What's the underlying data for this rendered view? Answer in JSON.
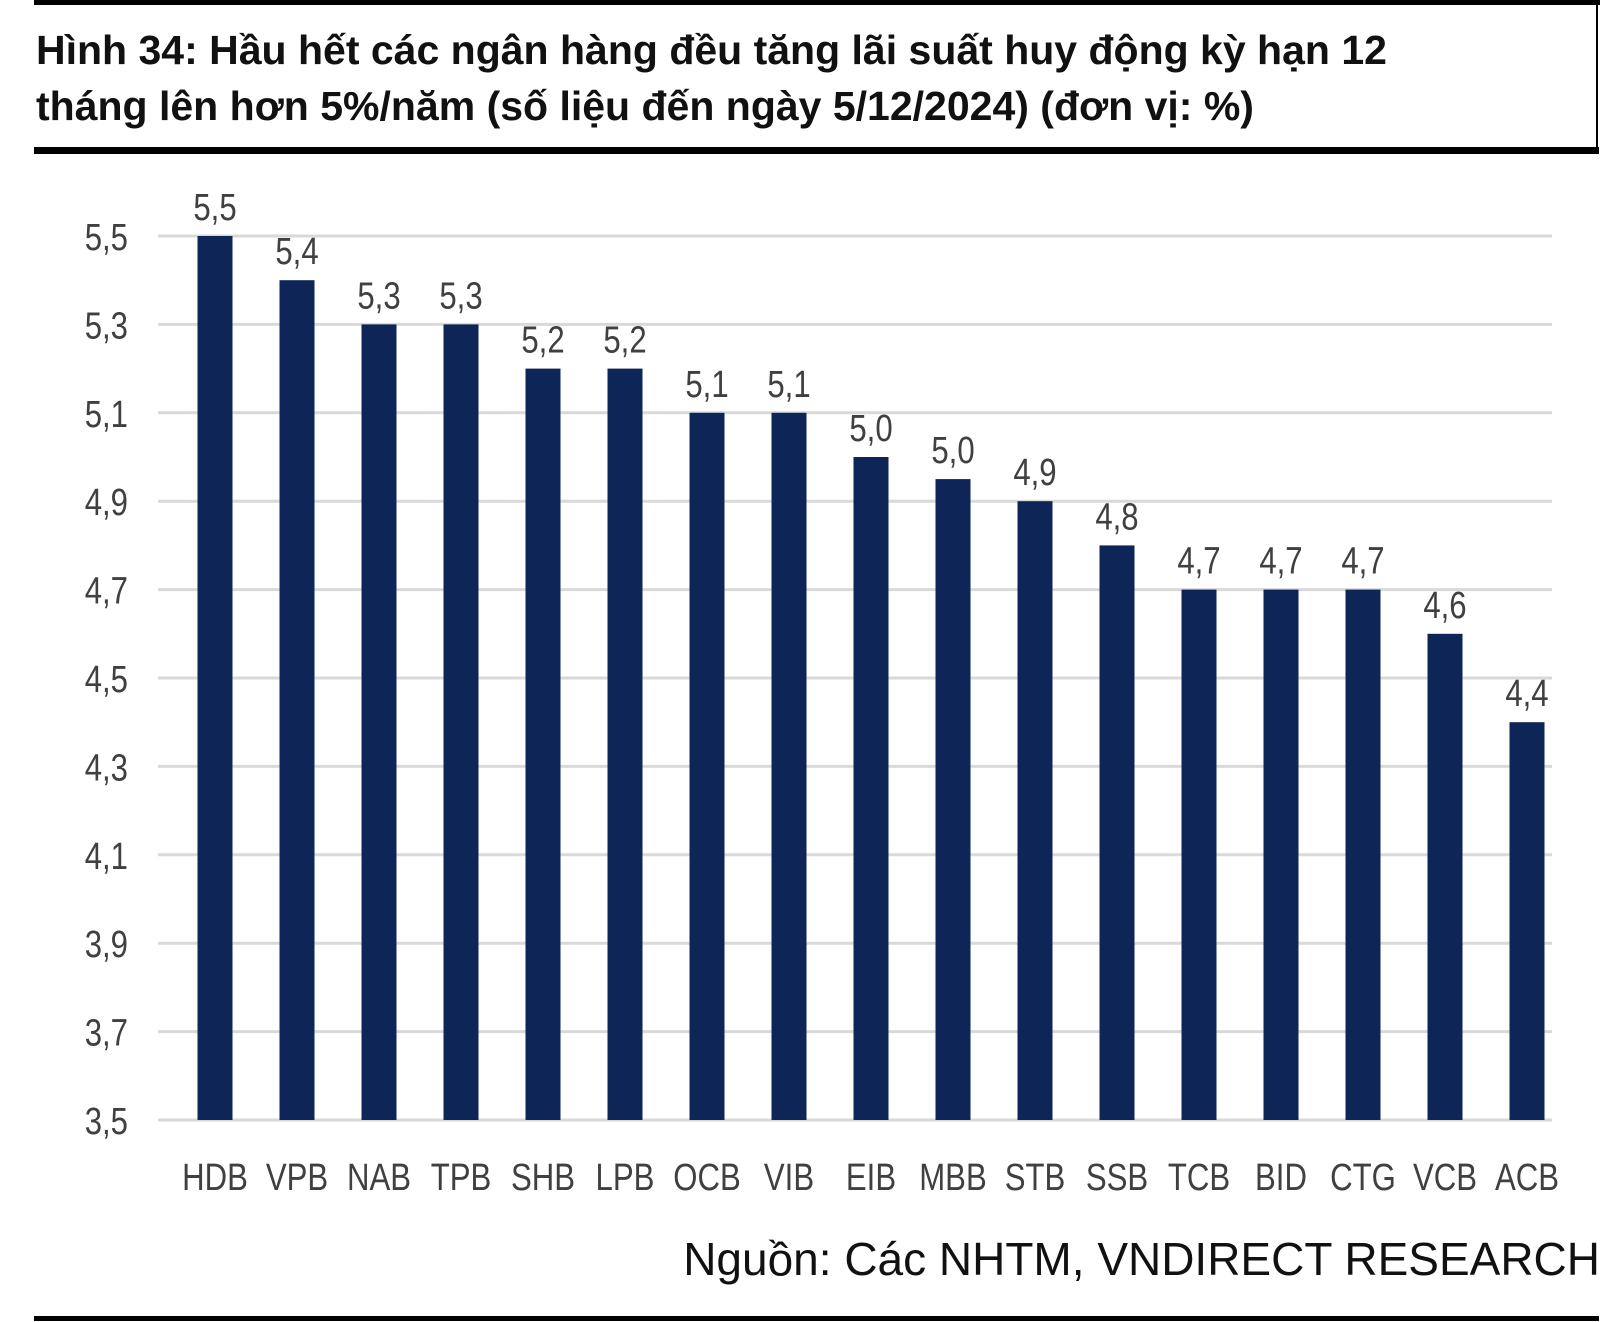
{
  "title": "Hình  34: Hầu hết các ngân hàng đều tăng lãi suất huy động kỳ hạn 12\ntháng lên hơn 5%/năm (số liệu đến ngày 5/12/2024) (đơn vị: %)",
  "source": "Nguồn: Các NHTM, VNDIRECT RESEARCH",
  "colors": {
    "bar": "#0e2557",
    "grid": "#d9d9d9",
    "text": "#404040"
  },
  "chart_data": {
    "type": "bar",
    "categories": [
      "HDB",
      "VPB",
      "NAB",
      "TPB",
      "SHB",
      "LPB",
      "OCB",
      "VIB",
      "EIB",
      "MBB",
      "STB",
      "SSB",
      "TCB",
      "BID",
      "CTG",
      "VCB",
      "ACB"
    ],
    "values": [
      5.5,
      5.4,
      5.3,
      5.3,
      5.2,
      5.2,
      5.1,
      5.1,
      5.0,
      4.95,
      4.9,
      4.8,
      4.7,
      4.7,
      4.7,
      4.6,
      4.4
    ],
    "data_labels": [
      "5,5",
      "5,4",
      "5,3",
      "5,3",
      "5,2",
      "5,2",
      "5,1",
      "5,1",
      "5,0",
      "5,0",
      "4,9",
      "4,8",
      "4,7",
      "4,7",
      "4,7",
      "4,6",
      "4,4"
    ],
    "yticks": [
      3.5,
      3.7,
      3.9,
      4.1,
      4.3,
      4.5,
      4.7,
      4.9,
      5.1,
      5.3,
      5.5
    ],
    "ytick_labels": [
      "3,5",
      "3,7",
      "3,9",
      "4,1",
      "4,3",
      "4,5",
      "4,7",
      "4,9",
      "5,1",
      "5,3",
      "5,5"
    ],
    "ylim": [
      3.5,
      5.5
    ],
    "grid": true,
    "legend": false
  }
}
